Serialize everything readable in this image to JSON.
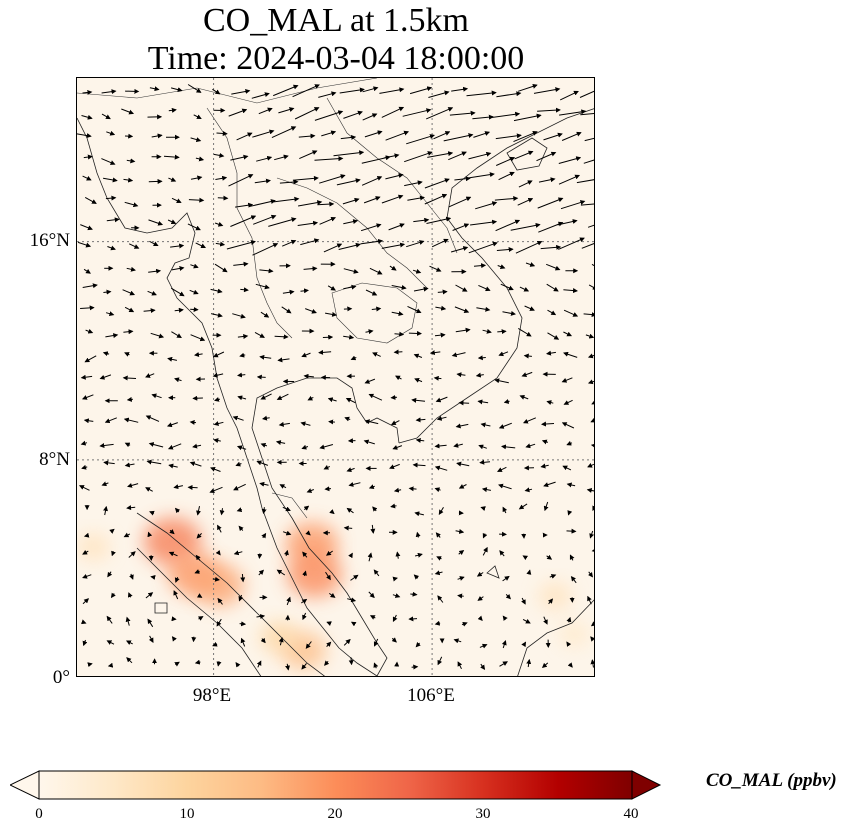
{
  "title": {
    "line1": "CO_MAL at 1.5km",
    "line2": "Time: 2024-03-04 18:00:00"
  },
  "map": {
    "lat_ticks": [
      {
        "value": 16,
        "label": "16°N"
      },
      {
        "value": 8,
        "label": "8°N"
      },
      {
        "value": 0,
        "label": "0°"
      }
    ],
    "lon_ticks": [
      {
        "value": 98,
        "label": "98°E"
      },
      {
        "value": 106,
        "label": "106°E"
      }
    ],
    "extent": {
      "lon_min": 93,
      "lon_max": 112,
      "lat_min": 0,
      "lat_max": 22
    },
    "gridlines": "dotted",
    "field_name": "CO_MAL",
    "level": "1.5km",
    "wind_vectors": true
  },
  "colorbar": {
    "label": "CO_MAL (ppbv)",
    "ticks": [
      "0",
      "10",
      "20",
      "30",
      "40"
    ],
    "range": [
      0,
      40
    ],
    "colormap": "OrRd",
    "colors": [
      "#fff7ec",
      "#fee8c8",
      "#fdd49e",
      "#fdbb84",
      "#fc8d59",
      "#ef6548",
      "#d7301f",
      "#b30000",
      "#7f0000"
    ],
    "extend": "both"
  },
  "chart_data": {
    "type": "heatmap",
    "title": "CO_MAL at 1.5km\nTime: 2024-03-04 18:00:00",
    "xlabel": "",
    "ylabel": "",
    "xlim": [
      93,
      112
    ],
    "ylim": [
      0,
      22
    ],
    "value_range": [
      0,
      40
    ],
    "hotspots": [
      {
        "lon": 96.5,
        "lat": 5.0,
        "value": 14
      },
      {
        "lon": 97.3,
        "lat": 3.8,
        "value": 12
      },
      {
        "lon": 98.2,
        "lat": 3.4,
        "value": 11
      },
      {
        "lon": 101.6,
        "lat": 4.9,
        "value": 12
      },
      {
        "lon": 101.7,
        "lat": 3.8,
        "value": 13
      },
      {
        "lon": 101.3,
        "lat": 1.0,
        "value": 9
      },
      {
        "lon": 100.4,
        "lat": 1.5,
        "value": 6
      },
      {
        "lon": 93.6,
        "lat": 4.8,
        "value": 4
      },
      {
        "lon": 110.5,
        "lat": 3.0,
        "value": 4
      },
      {
        "lon": 111.2,
        "lat": 1.6,
        "value": 3
      }
    ]
  }
}
